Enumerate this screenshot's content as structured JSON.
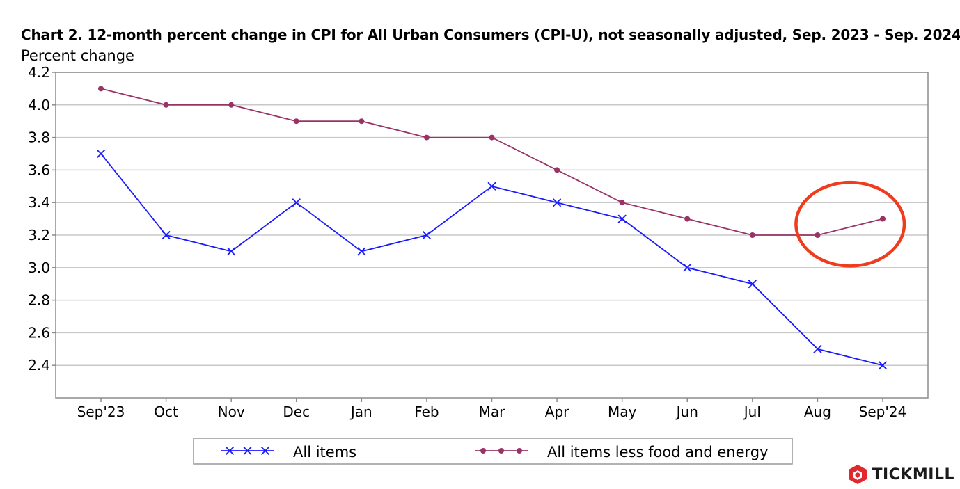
{
  "chart_data": {
    "type": "line",
    "title": "Chart 2. 12-month percent change in CPI for All Urban Consumers (CPI-U), not seasonally adjusted, Sep. 2023 - Sep. 2024",
    "ylabel": "Percent change",
    "xlabel": "",
    "categories": [
      "Sep'23",
      "Oct",
      "Nov",
      "Dec",
      "Jan",
      "Feb",
      "Mar",
      "Apr",
      "May",
      "Jun",
      "Jul",
      "Aug",
      "Sep'24"
    ],
    "ylim": [
      2.2,
      4.2
    ],
    "yticks": [
      "2.4",
      "2.6",
      "2.8",
      "3.0",
      "3.2",
      "3.4",
      "3.6",
      "3.8",
      "4.0",
      "4.2"
    ],
    "grid": true,
    "legend": "bottom",
    "series": [
      {
        "name": "All items",
        "color": "#1a1aff",
        "marker": "x",
        "values": [
          3.7,
          3.2,
          3.1,
          3.4,
          3.1,
          3.2,
          3.5,
          3.4,
          3.3,
          3.0,
          2.9,
          2.5,
          2.4
        ]
      },
      {
        "name": "All items less food and energy",
        "color": "#993366",
        "marker": "circle",
        "values": [
          4.1,
          4.0,
          4.0,
          3.9,
          3.9,
          3.8,
          3.8,
          3.6,
          3.4,
          3.3,
          3.2,
          3.2,
          3.3
        ]
      }
    ],
    "annotations": [
      {
        "type": "ellipse-highlight",
        "color": "#f03c1e",
        "x_range": [
          "Aug",
          "Sep'24"
        ],
        "y_range": [
          3.13,
          3.43
        ]
      }
    ]
  },
  "branding": {
    "name": "TICKMILL",
    "logo_color": "#e0282e"
  }
}
